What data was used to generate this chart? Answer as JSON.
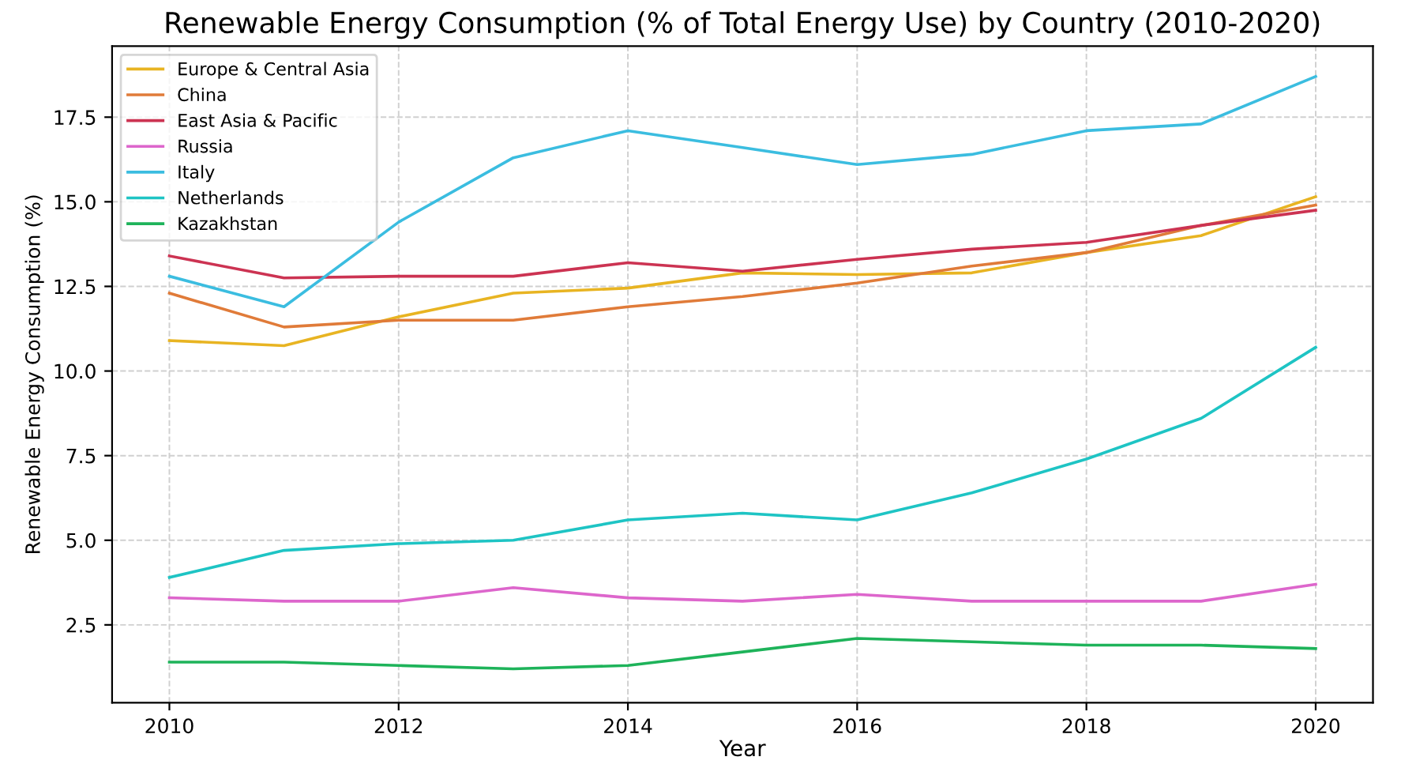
{
  "chart_data": {
    "type": "line",
    "title": "Renewable Energy Consumption (% of Total Energy Use) by Country (2010-2020)",
    "xlabel": "Year",
    "ylabel": "Renewable Energy Consumption (%)",
    "x": [
      2010,
      2011,
      2012,
      2013,
      2014,
      2015,
      2016,
      2017,
      2018,
      2019,
      2020
    ],
    "series": [
      {
        "name": "Europe & Central Asia",
        "color": "#e8b422",
        "values": [
          10.9,
          10.75,
          11.6,
          12.3,
          12.45,
          12.9,
          12.85,
          12.9,
          13.5,
          14.0,
          15.15
        ]
      },
      {
        "name": "China",
        "color": "#e07b39",
        "values": [
          12.3,
          11.3,
          11.5,
          11.5,
          11.9,
          12.2,
          12.6,
          13.1,
          13.5,
          14.3,
          14.9
        ]
      },
      {
        "name": "East Asia & Pacific",
        "color": "#cc3352",
        "values": [
          13.4,
          12.75,
          12.8,
          12.8,
          13.2,
          12.95,
          13.3,
          13.6,
          13.8,
          14.3,
          14.75
        ]
      },
      {
        "name": "Russia",
        "color": "#dd66cc",
        "values": [
          3.3,
          3.2,
          3.2,
          3.6,
          3.3,
          3.2,
          3.4,
          3.2,
          3.2,
          3.2,
          3.7
        ]
      },
      {
        "name": "Italy",
        "color": "#3bbde0",
        "values": [
          12.8,
          11.9,
          14.4,
          16.3,
          17.1,
          16.6,
          16.1,
          16.4,
          17.1,
          17.3,
          18.7
        ]
      },
      {
        "name": "Netherlands",
        "color": "#1ec4c4",
        "values": [
          3.9,
          4.7,
          4.9,
          5.0,
          5.6,
          5.8,
          5.6,
          6.4,
          7.4,
          8.6,
          10.7
        ]
      },
      {
        "name": "Kazakhstan",
        "color": "#1eb35a",
        "values": [
          1.4,
          1.4,
          1.3,
          1.2,
          1.3,
          1.7,
          2.1,
          2.0,
          1.9,
          1.9,
          1.8
        ]
      }
    ],
    "xlim": [
      2009.5,
      2020.5
    ],
    "xticks": [
      2010,
      2012,
      2014,
      2016,
      2018,
      2020
    ],
    "ylim": [
      0.2,
      19.6
    ],
    "yticks": [
      2.5,
      {
        "value": 5,
        "label": "5.0"
      },
      7.5,
      {
        "value": 10,
        "label": "10.0"
      },
      12.5,
      {
        "value": 15,
        "label": "15.0"
      },
      17.5
    ],
    "grid": true,
    "legend": "top left",
    "line_style": "solid",
    "marker": "none"
  }
}
